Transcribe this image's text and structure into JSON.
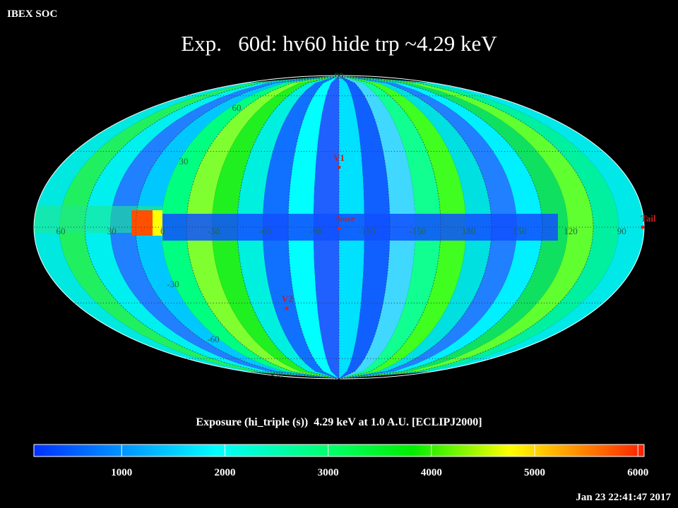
{
  "header": {
    "source": "IBEX SOC",
    "title": "Exp.   60d: hv60 hide trp ~4.29 keV",
    "timestamp": "Jan 23 22:41:47 2017"
  },
  "map": {
    "longitude_labels": [
      "60",
      "30",
      "0",
      "-30",
      "-60",
      "-90",
      "-120",
      "-150",
      "180",
      "150",
      "120",
      "90"
    ],
    "latitude_labels": [
      "90",
      "60",
      "30",
      "-30",
      "-60",
      "-90"
    ],
    "markers": [
      {
        "label": "V1"
      },
      {
        "label": "Nose"
      },
      {
        "label": "V2"
      },
      {
        "label": "Tail"
      }
    ]
  },
  "colorbar": {
    "label": "Exposure (hi_triple (s))  4.29 keV at 1.0 A.U. [ECLIPJ2000]",
    "lim": [
      150,
      6060
    ],
    "ticks": [
      1000,
      2000,
      3000,
      4000,
      5000,
      6000
    ]
  }
}
